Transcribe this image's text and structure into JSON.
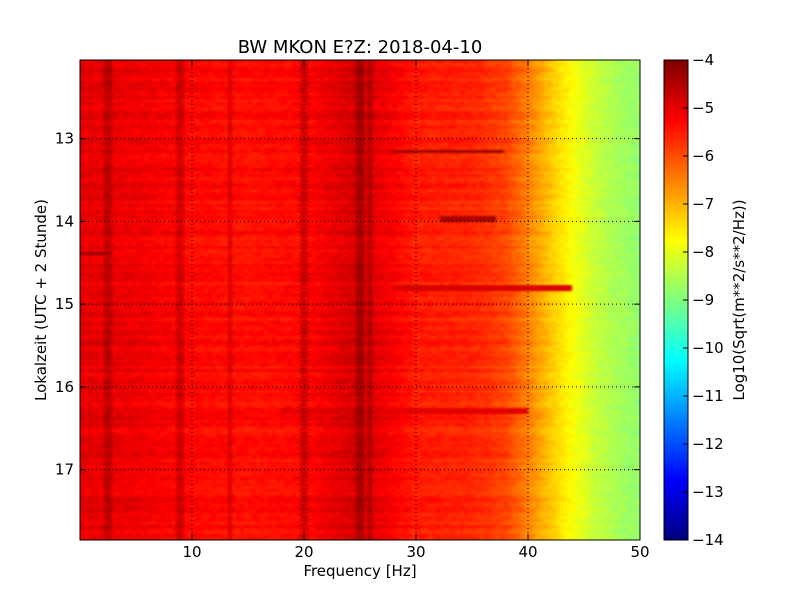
{
  "chart_data": {
    "type": "heatmap",
    "title": "BW MKON E?Z: 2018-04-10",
    "xlabel": "Frequency [Hz]",
    "ylabel": "Lokalzeit (UTC + 2 Stunde)",
    "xlim": [
      0,
      50
    ],
    "ylim": [
      12.05,
      17.85
    ],
    "y_inverted": true,
    "x_ticks": [
      10,
      20,
      30,
      40,
      50
    ],
    "x_tick_labels": [
      "10",
      "20",
      "30",
      "40",
      "50"
    ],
    "y_ticks": [
      13,
      14,
      15,
      16,
      17
    ],
    "y_tick_labels": [
      "13",
      "14",
      "15",
      "16",
      "17"
    ],
    "grid": true,
    "colormap": "jet",
    "colorbar": {
      "label": "Log10(Sqrt(m**2/s**2/Hz))",
      "range": [
        -14,
        -4
      ],
      "ticks": [
        -4,
        -5,
        -6,
        -7,
        -8,
        -9,
        -10,
        -11,
        -12,
        -13,
        -14
      ],
      "tick_labels": [
        "−4",
        "−5",
        "−6",
        "−7",
        "−8",
        "−9",
        "−10",
        "−11",
        "−12",
        "−13",
        "−14"
      ]
    },
    "z_profile_by_frequency": {
      "frequency_hz": [
        0,
        5,
        10,
        15,
        20,
        25,
        30,
        35,
        38,
        40,
        42,
        44,
        46,
        48,
        50
      ],
      "log10_amplitude": [
        -5.0,
        -5.1,
        -5.3,
        -5.4,
        -5.3,
        -4.8,
        -5.5,
        -5.6,
        -5.9,
        -6.5,
        -7.2,
        -7.8,
        -8.3,
        -8.6,
        -8.8
      ]
    },
    "spectral_lines_hz": [
      2.5,
      8.8,
      9.0,
      13.5,
      20.0,
      24.8,
      25.2,
      26.0
    ],
    "strong_events": [
      {
        "time": 13.15,
        "freq_range": [
          28,
          38
        ],
        "log10_amplitude": -4.3
      },
      {
        "time": 13.98,
        "freq_range": [
          32,
          37
        ],
        "log10_amplitude": -4.4
      },
      {
        "time": 14.39,
        "freq_range": [
          0,
          3
        ],
        "log10_amplitude": -4.2
      },
      {
        "time": 14.8,
        "freq_range": [
          28,
          44
        ],
        "log10_amplitude": -4.9
      },
      {
        "time": 16.28,
        "freq_range": [
          18,
          40
        ],
        "log10_amplitude": -5.0
      }
    ]
  }
}
